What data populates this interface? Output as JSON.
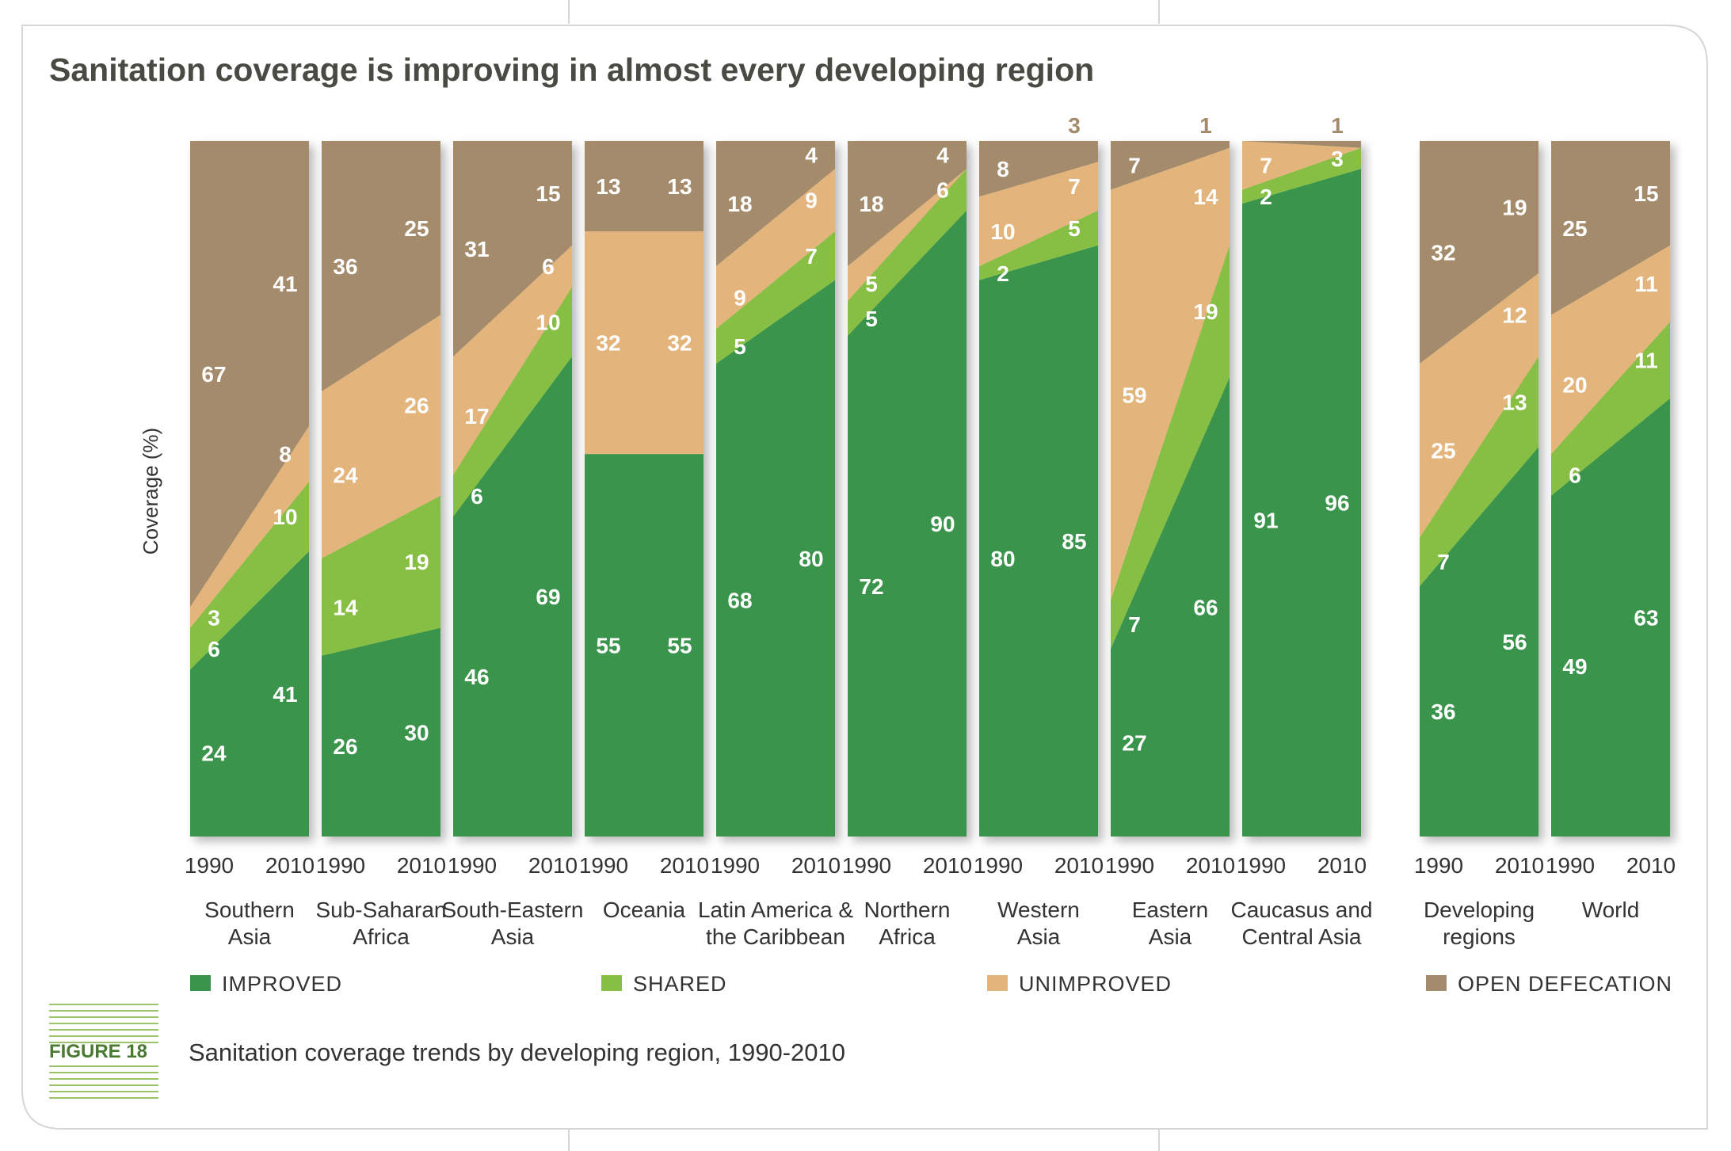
{
  "title": "Sanitation coverage is improving in almost every developing region",
  "figure": {
    "label": "FIGURE 18",
    "caption": "Sanitation coverage trends by developing region, 1990-2010"
  },
  "colors": {
    "improved": "#3a944c",
    "shared": "#87bf45",
    "unimproved": "#e3b57c",
    "open_defecation": "#a48b6c"
  },
  "chart_data": {
    "type": "area",
    "stacked": true,
    "ylabel": "Coverage (%)",
    "ylim": [
      0,
      100
    ],
    "x": [
      "1990",
      "2010"
    ],
    "legend": [
      "IMPROVED",
      "SHARED",
      "UNIMPROVED",
      "OPEN DEFECATION"
    ],
    "legend_position": "bottom",
    "regions": [
      {
        "name_lines": [
          "Southern",
          "Asia"
        ],
        "y1990": {
          "improved": 24,
          "shared": 6,
          "unimproved": 3,
          "open_defecation": 67
        },
        "y2010": {
          "improved": 41,
          "shared": 10,
          "unimproved": 8,
          "open_defecation": 41
        }
      },
      {
        "name_lines": [
          "Sub-Saharan",
          "Africa"
        ],
        "y1990": {
          "improved": 26,
          "shared": 14,
          "unimproved": 24,
          "open_defecation": 36
        },
        "y2010": {
          "improved": 30,
          "shared": 19,
          "unimproved": 26,
          "open_defecation": 25
        }
      },
      {
        "name_lines": [
          "South-Eastern",
          "Asia"
        ],
        "y1990": {
          "improved": 46,
          "shared": 6,
          "unimproved": 17,
          "open_defecation": 31
        },
        "y2010": {
          "improved": 69,
          "shared": 10,
          "unimproved": 6,
          "open_defecation": 15
        }
      },
      {
        "name_lines": [
          "Oceania"
        ],
        "y1990": {
          "improved": 55,
          "shared": null,
          "unimproved": 32,
          "open_defecation": 13
        },
        "y2010": {
          "improved": 55,
          "shared": null,
          "unimproved": 32,
          "open_defecation": 13
        }
      },
      {
        "name_lines": [
          "Latin America &",
          "the Caribbean"
        ],
        "y1990": {
          "improved": 68,
          "shared": 5,
          "unimproved": 9,
          "open_defecation": 18
        },
        "y2010": {
          "improved": 80,
          "shared": 7,
          "unimproved": 9,
          "open_defecation": 4
        }
      },
      {
        "name_lines": [
          "Northern",
          "Africa"
        ],
        "y1990": {
          "improved": 72,
          "shared": 5,
          "unimproved": 5,
          "open_defecation": 18
        },
        "y2010": {
          "improved": 90,
          "shared": 6,
          "unimproved": null,
          "open_defecation": 4
        }
      },
      {
        "name_lines": [
          "Western",
          "Asia"
        ],
        "y1990": {
          "improved": 80,
          "shared": 2,
          "unimproved": 10,
          "open_defecation": 8
        },
        "y2010": {
          "improved": 85,
          "shared": 5,
          "unimproved": 7,
          "open_defecation": 3
        }
      },
      {
        "name_lines": [
          "Eastern",
          "Asia"
        ],
        "y1990": {
          "improved": 27,
          "shared": 7,
          "unimproved": 59,
          "open_defecation": 7
        },
        "y2010": {
          "improved": 66,
          "shared": 19,
          "unimproved": 14,
          "open_defecation": 1
        }
      },
      {
        "name_lines": [
          "Caucasus and",
          "Central Asia"
        ],
        "y1990": {
          "improved": 91,
          "shared": 2,
          "unimproved": 7,
          "open_defecation": null
        },
        "y2010": {
          "improved": 96,
          "shared": 3,
          "unimproved": null,
          "open_defecation": 1
        }
      },
      {
        "name_lines": [
          "Developing",
          "regions"
        ],
        "y1990": {
          "improved": 36,
          "shared": 7,
          "unimproved": 25,
          "open_defecation": 32
        },
        "y2010": {
          "improved": 56,
          "shared": 13,
          "unimproved": 12,
          "open_defecation": 19
        }
      },
      {
        "name_lines": [
          "World"
        ],
        "y1990": {
          "improved": 49,
          "shared": 6,
          "unimproved": 20,
          "open_defecation": 25
        },
        "y2010": {
          "improved": 63,
          "shared": 11,
          "unimproved": 11,
          "open_defecation": 15
        }
      }
    ]
  }
}
